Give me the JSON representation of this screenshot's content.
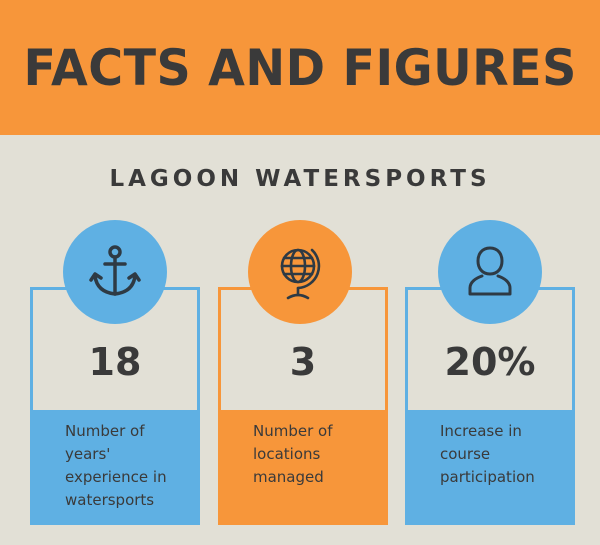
{
  "banner": {
    "title": "FACTS AND FIGURES"
  },
  "subtitle": "LAGOON WATERSPORTS",
  "colors": {
    "orange": "#f7963a",
    "blue": "#5fb0e3",
    "background": "#e2e0d6",
    "text": "#3a3a3a"
  },
  "cards": [
    {
      "icon": "anchor-icon",
      "value": "18",
      "label_lines": [
        "Number of",
        "years'",
        "experience in",
        "watersports"
      ]
    },
    {
      "icon": "globe-icon",
      "value": "3",
      "label_lines": [
        "Number of",
        "locations",
        "managed"
      ]
    },
    {
      "icon": "person-icon",
      "value": "20%",
      "label_lines": [
        "Increase in",
        "course",
        "participation"
      ]
    }
  ]
}
